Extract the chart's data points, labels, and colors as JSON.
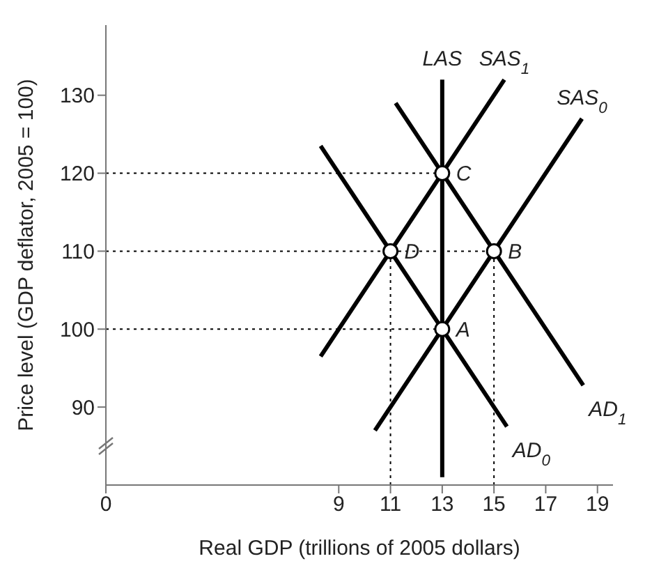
{
  "chart_data": {
    "type": "line",
    "xlabel": "Real GDP (trillions of 2005 dollars)",
    "ylabel": "Price level (GDP deflator, 2005 = 100)",
    "xlim": [
      0,
      19.6
    ],
    "xticks": [
      0,
      9,
      11,
      13,
      15,
      17,
      19
    ],
    "ylim": [
      80,
      139
    ],
    "yticks": [
      90,
      100,
      110,
      120,
      130
    ],
    "line_style": "solid",
    "series": [
      {
        "name": "LAS",
        "color": "#000000",
        "x": [
          13,
          13
        ],
        "values": [
          81,
          132
        ]
      },
      {
        "name": "SAS$_{1}$",
        "color": "#000000",
        "x": [
          8.3,
          15.4
        ],
        "values": [
          96.5,
          132
        ]
      },
      {
        "name": "SAS$_{0}$",
        "color": "#000000",
        "x": [
          10.4,
          18.4
        ],
        "values": [
          87,
          127
        ]
      },
      {
        "name": "AD$_{0}$",
        "color": "#000000",
        "x": [
          8.3,
          15.5
        ],
        "values": [
          123.5,
          87.5
        ]
      },
      {
        "name": "AD$_{1}$",
        "color": "#000000",
        "x": [
          11.2,
          18.45
        ],
        "values": [
          129,
          92.8
        ]
      },
      {
        "color": "#000000",
        "line_style": "dotted",
        "x": [
          0,
          13
        ],
        "values": [
          120,
          120
        ]
      },
      {
        "color": "#000000",
        "line_style": "dotted",
        "x": [
          0,
          15
        ],
        "values": [
          110,
          110
        ]
      },
      {
        "color": "#000000",
        "line_style": "dotted",
        "x": [
          0,
          13
        ],
        "values": [
          100,
          100
        ]
      },
      {
        "color": "#000000",
        "line_style": "dotted",
        "x": [
          11,
          11
        ],
        "values": [
          80,
          110
        ]
      },
      {
        "color": "#000000",
        "line_style": "dotted",
        "x": [
          15,
          15
        ],
        "values": [
          80,
          110
        ]
      },
      {
        "type": "scatter",
        "marker": "circle",
        "color": "#000000",
        "x": [
          13,
          15,
          13,
          11
        ],
        "values": [
          100,
          110,
          120,
          110
        ]
      }
    ],
    "annotations": [
      {
        "text": "A",
        "x": 13,
        "y": 100
      },
      {
        "text": "B",
        "x": 15,
        "y": 110
      },
      {
        "text": "C",
        "x": 13,
        "y": 120
      },
      {
        "text": "D",
        "x": 11,
        "y": 110
      }
    ]
  }
}
